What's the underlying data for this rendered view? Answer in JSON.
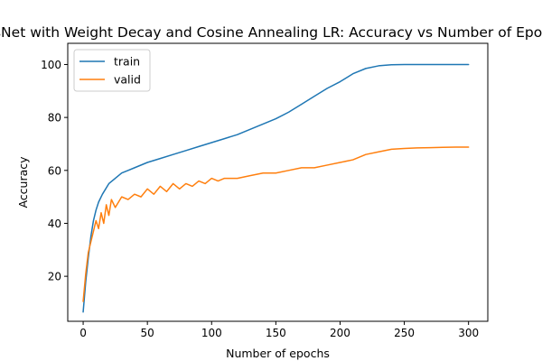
{
  "chart_data": {
    "type": "line",
    "title": "ResNet with Weight Decay and Cosine Annealing LR: Accuracy vs Number of Epochs",
    "xlabel": "Number of epochs",
    "ylabel": "Accuracy",
    "xlim": [
      -12,
      315
    ],
    "ylim": [
      3,
      108
    ],
    "xticks": [
      0,
      50,
      100,
      150,
      200,
      250,
      300
    ],
    "yticks": [
      20,
      40,
      60,
      80,
      100
    ],
    "grid": false,
    "legend": "top-left",
    "series": [
      {
        "name": "train",
        "color": "#1f77b4",
        "points": [
          [
            0,
            6.5
          ],
          [
            2,
            18
          ],
          [
            4,
            27
          ],
          [
            6,
            35
          ],
          [
            8,
            41
          ],
          [
            10,
            45
          ],
          [
            12,
            48
          ],
          [
            15,
            51
          ],
          [
            20,
            55
          ],
          [
            25,
            57
          ],
          [
            30,
            59
          ],
          [
            35,
            60
          ],
          [
            40,
            61
          ],
          [
            50,
            63
          ],
          [
            60,
            64.5
          ],
          [
            70,
            66
          ],
          [
            80,
            67.5
          ],
          [
            90,
            69
          ],
          [
            100,
            70.5
          ],
          [
            110,
            72
          ],
          [
            120,
            73.5
          ],
          [
            130,
            75.5
          ],
          [
            140,
            77.5
          ],
          [
            150,
            79.5
          ],
          [
            160,
            82
          ],
          [
            170,
            85
          ],
          [
            180,
            88
          ],
          [
            190,
            91
          ],
          [
            200,
            93.5
          ],
          [
            210,
            96.5
          ],
          [
            220,
            98.5
          ],
          [
            230,
            99.5
          ],
          [
            240,
            99.9
          ],
          [
            250,
            100
          ],
          [
            260,
            100
          ],
          [
            270,
            100
          ],
          [
            280,
            100
          ],
          [
            290,
            100
          ],
          [
            300,
            100
          ]
        ]
      },
      {
        "name": "valid",
        "color": "#ff7f0e",
        "points": [
          [
            0,
            10.5
          ],
          [
            2,
            21
          ],
          [
            4,
            29
          ],
          [
            6,
            33
          ],
          [
            8,
            37
          ],
          [
            10,
            41
          ],
          [
            12,
            38
          ],
          [
            14,
            44
          ],
          [
            16,
            40
          ],
          [
            18,
            47
          ],
          [
            20,
            43
          ],
          [
            22,
            49
          ],
          [
            25,
            46
          ],
          [
            30,
            50
          ],
          [
            35,
            49
          ],
          [
            40,
            51
          ],
          [
            45,
            50
          ],
          [
            50,
            53
          ],
          [
            55,
            51
          ],
          [
            60,
            54
          ],
          [
            65,
            52
          ],
          [
            70,
            55
          ],
          [
            75,
            53
          ],
          [
            80,
            55
          ],
          [
            85,
            54
          ],
          [
            90,
            56
          ],
          [
            95,
            55
          ],
          [
            100,
            57
          ],
          [
            105,
            56
          ],
          [
            110,
            57
          ],
          [
            120,
            57
          ],
          [
            130,
            58
          ],
          [
            140,
            59
          ],
          [
            150,
            59
          ],
          [
            160,
            60
          ],
          [
            170,
            61
          ],
          [
            180,
            61
          ],
          [
            190,
            62
          ],
          [
            200,
            63
          ],
          [
            210,
            64
          ],
          [
            220,
            66
          ],
          [
            230,
            67
          ],
          [
            240,
            68
          ],
          [
            250,
            68.3
          ],
          [
            260,
            68.5
          ],
          [
            270,
            68.6
          ],
          [
            280,
            68.7
          ],
          [
            290,
            68.8
          ],
          [
            300,
            68.8
          ]
        ]
      }
    ]
  }
}
